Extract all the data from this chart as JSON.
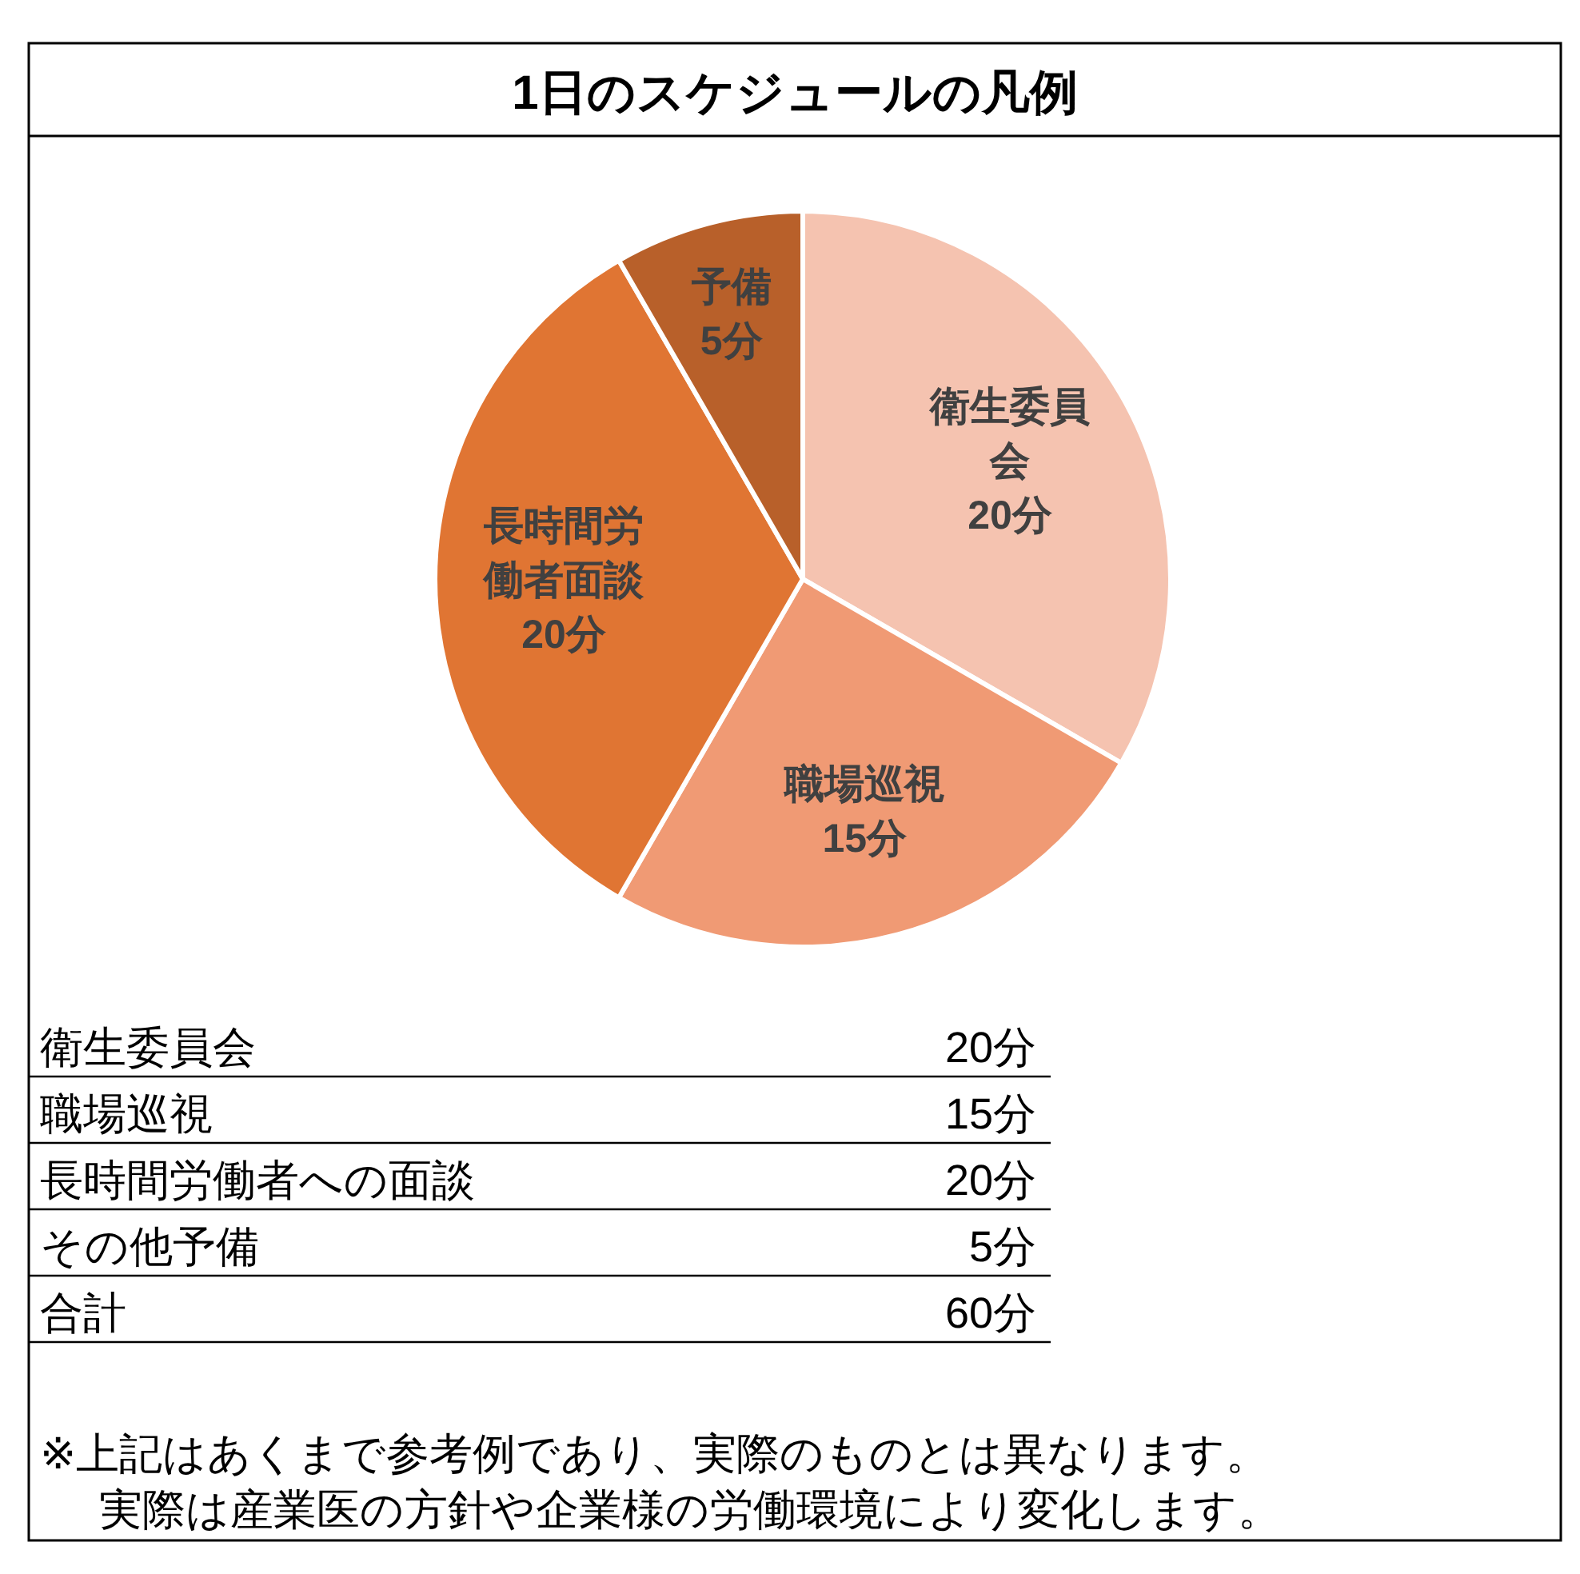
{
  "chart_data": {
    "type": "pie",
    "title": "1日のスケジュールの凡例",
    "categories": [
      "衛生委員会",
      "職場巡視",
      "長時間労働者面談",
      "予備"
    ],
    "values": [
      20,
      15,
      20,
      5
    ],
    "value_labels": [
      "20分",
      "15分",
      "20分",
      "5分"
    ],
    "colors": [
      "#f5c3b0",
      "#f09a74",
      "#e07533",
      "#b8602a"
    ],
    "annotations": [
      "衛生委員会",
      "20分",
      "職場巡視",
      "15分",
      "長時間労働者への面談",
      "20分",
      "その他予備",
      "5分",
      "合計",
      "60分",
      "※上記はあくまで参考例であり、実際のものとは異なります。",
      "実際は産業医の方針や企業様の労働環境により変化します。"
    ]
  }
}
